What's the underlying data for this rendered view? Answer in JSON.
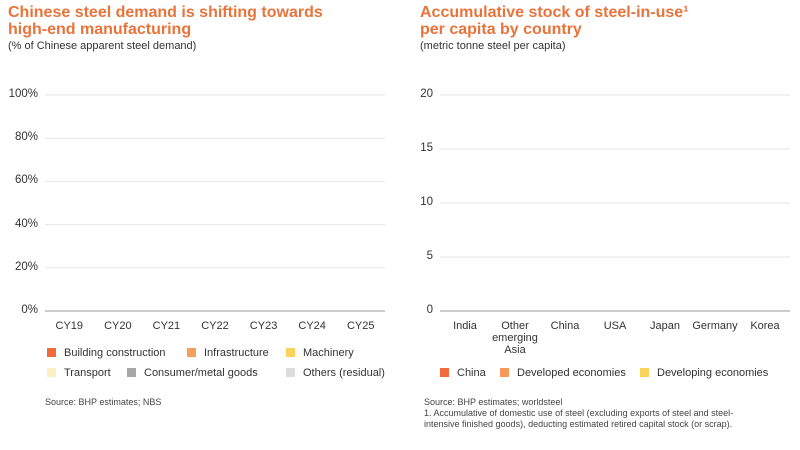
{
  "charts": [
    {
      "chart_data": {
        "type": "bar",
        "stacked": true,
        "title": "Chinese steel demand is shifting towards high-end manufacturing",
        "subtitle": "(% of Chinese apparent steel demand)",
        "categories": [
          "CY19",
          "CY20",
          "CY21",
          "CY22",
          "CY23",
          "CY24",
          "CY25"
        ],
        "series": [
          {
            "name": "Building construction",
            "color": "#f26b3a",
            "values": [
              null,
              null,
              null,
              null,
              null,
              null,
              null
            ]
          },
          {
            "name": "Infrastructure",
            "color": "#f5a05a",
            "values": [
              null,
              null,
              null,
              null,
              null,
              null,
              null
            ]
          },
          {
            "name": "Machinery",
            "color": "#fbd25a",
            "values": [
              null,
              null,
              null,
              null,
              null,
              null,
              null
            ]
          },
          {
            "name": "Transport",
            "color": "#fdefc4",
            "values": [
              null,
              null,
              null,
              null,
              null,
              null,
              null
            ]
          },
          {
            "name": "Consumer/metal goods",
            "color": "#a7a7a7",
            "values": [
              null,
              null,
              null,
              null,
              null,
              null,
              null
            ]
          },
          {
            "name": "Others (residual)",
            "color": "#dcdcdc",
            "values": [
              null,
              null,
              null,
              null,
              null,
              null,
              null
            ]
          }
        ],
        "ylim": [
          0,
          100
        ],
        "yticks": [
          {
            "value": 0,
            "label": "0%"
          },
          {
            "value": 20,
            "label": "20%"
          },
          {
            "value": 40,
            "label": "40%"
          },
          {
            "value": 60,
            "label": "60%"
          },
          {
            "value": 80,
            "label": "80%"
          },
          {
            "value": 100,
            "label": "100%"
          }
        ],
        "grid": true,
        "source": "Source: BHP estimates; NBS"
      }
    },
    {
      "chart_data": {
        "type": "bar",
        "stacked": false,
        "title": "Accumulative stock of steel-in-use¹ per capita by country",
        "subtitle": "(metric tonne steel per capita)",
        "categories": [
          "India",
          "Other emerging Asia",
          "China",
          "USA",
          "Japan",
          "Germany",
          "Korea"
        ],
        "series": [
          {
            "name": "China",
            "color": "#f26b3a",
            "values": [
              null,
              null,
              null,
              null,
              null,
              null,
              null
            ]
          },
          {
            "name": "Developed economies",
            "color": "#f59a5a",
            "values": [
              null,
              null,
              null,
              null,
              null,
              null,
              null
            ]
          },
          {
            "name": "Developing economies",
            "color": "#fbd25a",
            "values": [
              null,
              null,
              null,
              null,
              null,
              null,
              null
            ]
          }
        ],
        "ylim": [
          0,
          20
        ],
        "yticks": [
          0,
          5,
          10,
          15,
          20
        ],
        "grid": true,
        "source": "Source: BHP estimates; worldsteel",
        "note": "1. Accumulative of domestic use of steel (excluding exports of steel and steel-intensive finished goods), deducting estimated retired capital stock (or scrap)."
      }
    }
  ]
}
